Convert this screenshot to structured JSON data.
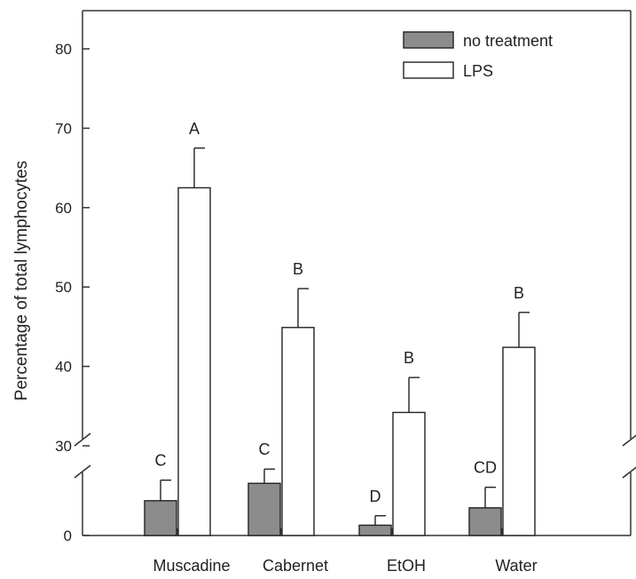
{
  "chart_data": {
    "type": "bar",
    "title": "",
    "xlabel": "",
    "ylabel": "Percentage of total lymphocytes",
    "broken_axis": true,
    "ylim_lower": [
      0,
      10
    ],
    "ylim_upper": [
      30,
      82
    ],
    "yticks_lower": [
      "0"
    ],
    "yticks_upper": [
      "30",
      "40",
      "50",
      "60",
      "70",
      "80"
    ],
    "categories": [
      "Muscadine",
      "Cabernet",
      "EtOH",
      "Water"
    ],
    "series": [
      {
        "name": "no treatment",
        "fill": "#8c8c8c",
        "values": [
          4.4,
          6.6,
          1.3,
          3.5
        ],
        "errors": [
          2.6,
          1.8,
          1.2,
          2.6
        ],
        "letters": [
          "C",
          "C",
          "D",
          "CD"
        ]
      },
      {
        "name": "LPS",
        "fill": "#ffffff",
        "values": [
          62.5,
          44.9,
          34.2,
          42.4
        ],
        "errors": [
          5.0,
          4.9,
          4.4,
          4.4
        ],
        "letters": [
          "A",
          "B",
          "B",
          "B"
        ]
      }
    ],
    "legend_position": "top-right",
    "grid": false
  }
}
